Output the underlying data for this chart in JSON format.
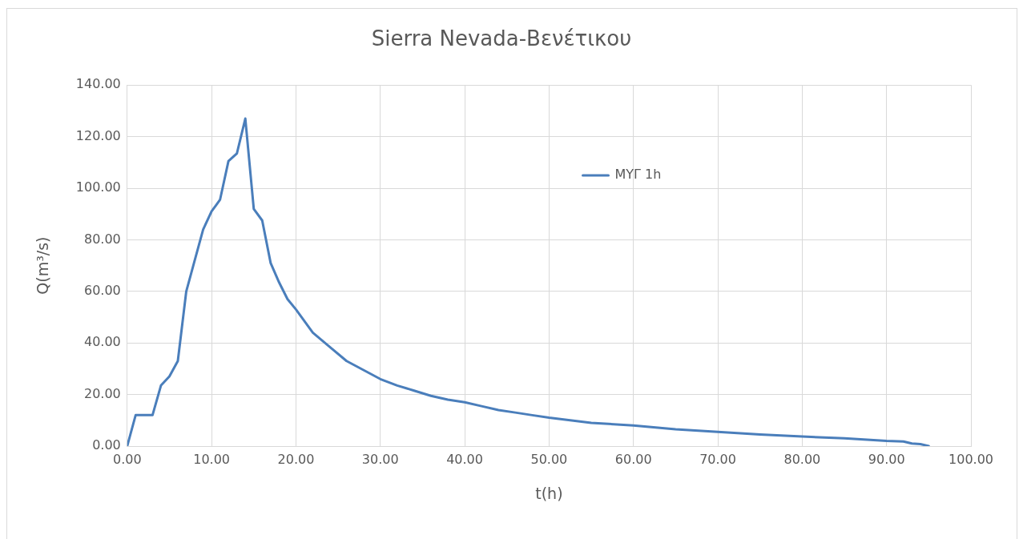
{
  "chart_data": {
    "type": "line",
    "title": "Sierra Nevada-Βενέτικου",
    "xlabel": "t(h)",
    "ylabel": "Q(m³/s)",
    "xlim": [
      0,
      100
    ],
    "xticks": [
      {
        "value": 0,
        "label": "0.00"
      },
      {
        "value": 10,
        "label": "10.00"
      },
      {
        "value": 20,
        "label": "20.00"
      },
      {
        "value": 30,
        "label": "30.00"
      },
      {
        "value": 40,
        "label": "40.00"
      },
      {
        "value": 50,
        "label": "50.00"
      },
      {
        "value": 60,
        "label": "60.00"
      },
      {
        "value": 70,
        "label": "70.00"
      },
      {
        "value": 80,
        "label": "80.00"
      },
      {
        "value": 90,
        "label": "90.00"
      },
      {
        "value": 100,
        "label": "100.00"
      }
    ],
    "ylim": [
      0,
      140
    ],
    "yticks": [
      {
        "value": 0,
        "label": "0.00"
      },
      {
        "value": 20,
        "label": "20.00"
      },
      {
        "value": 40,
        "label": "40.00"
      },
      {
        "value": 60,
        "label": "60.00"
      },
      {
        "value": 80,
        "label": "80.00"
      },
      {
        "value": 100,
        "label": "100.00"
      },
      {
        "value": 120,
        "label": "120.00"
      },
      {
        "value": 140,
        "label": "140.00"
      }
    ],
    "grid": true,
    "legend": "top right",
    "marker": "none",
    "line_style": "solid",
    "x": [
      0,
      1,
      3,
      4,
      5,
      6,
      7,
      8,
      9,
      10,
      11,
      12,
      13,
      14,
      15,
      16,
      17,
      18,
      19,
      20,
      22,
      24,
      26,
      28,
      30,
      32,
      34,
      36,
      38,
      40,
      42,
      44,
      46,
      48,
      50,
      55,
      60,
      65,
      70,
      75,
      80,
      85,
      90,
      92,
      93,
      94,
      95
    ],
    "series": [
      {
        "name": "ΜΥΓ 1h",
        "color": "#4a7ebb",
        "values": [
          0,
          12,
          12,
          23.5,
          27,
          33,
          60,
          72,
          84,
          91,
          95.5,
          110.5,
          113.5,
          127,
          92,
          87.5,
          71,
          63.5,
          57,
          53,
          44,
          38.5,
          33,
          29.5,
          26,
          23.5,
          21.5,
          19.5,
          18,
          17,
          15.5,
          14,
          13,
          12,
          11,
          9,
          8,
          6.5,
          5.5,
          4.5,
          3.7,
          3,
          2,
          1.8,
          1,
          0.8,
          0
        ]
      }
    ]
  }
}
